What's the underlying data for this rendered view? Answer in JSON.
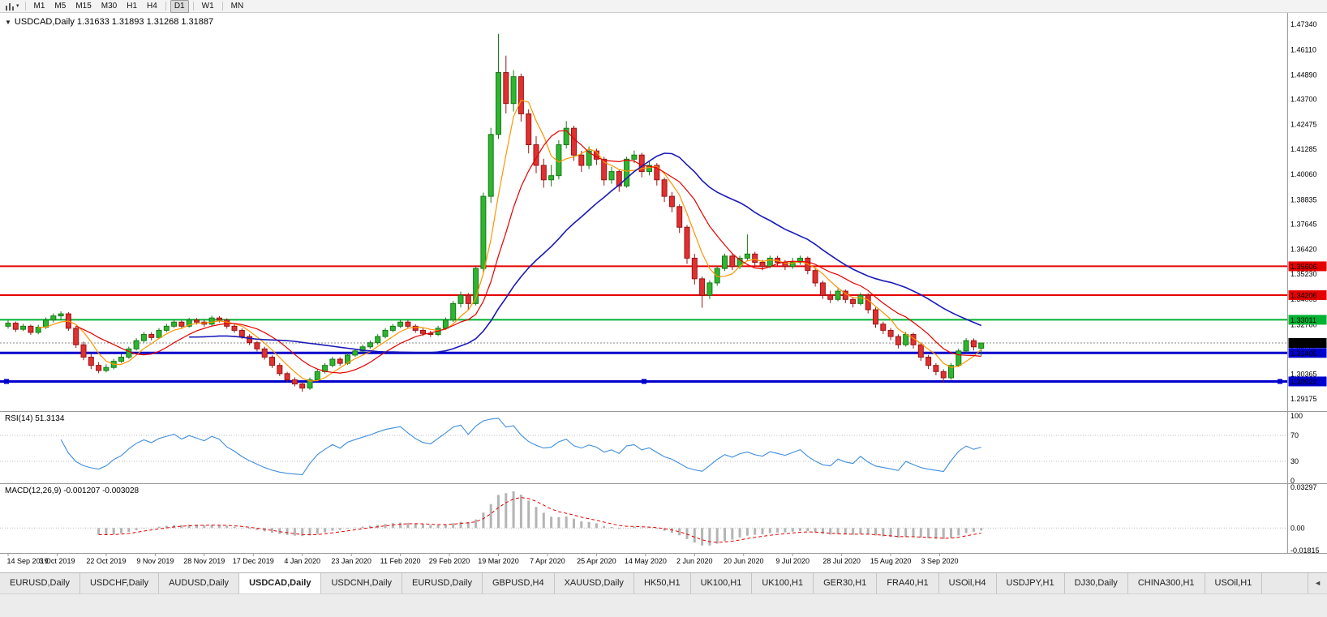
{
  "toolbar": {
    "dropdown_glyph": "▾",
    "timeframes": [
      {
        "label": "M1"
      },
      {
        "label": "M5"
      },
      {
        "label": "M15"
      },
      {
        "label": "M30"
      },
      {
        "label": "H1"
      },
      {
        "label": "H4",
        "sep_after": true
      },
      {
        "label": "D1",
        "active": true,
        "sep_after": true
      },
      {
        "label": "W1",
        "sep_after": true
      },
      {
        "label": "MN"
      }
    ]
  },
  "chart": {
    "marker_glyph": "▼",
    "symbol_line": "USDCAD,Daily 1.31633 1.31893 1.31268 1.31887",
    "ohlc": {
      "open": "1.31633",
      "high": "1.31893",
      "low": "1.31268",
      "close": "1.31887"
    }
  },
  "rsi": {
    "label": "RSI(14) 51.3134",
    "axis": [
      "100",
      "70",
      "30",
      "0"
    ]
  },
  "macd": {
    "label": "MACD(12,26,9) -0.001207 -0.003028",
    "axis": [
      "0.03297",
      "0.00",
      "-0.01815"
    ]
  },
  "chart_data": {
    "type": "candlestick",
    "symbol": "USDCAD",
    "timeframe": "Daily",
    "price_axis_range": {
      "top": 1.4734,
      "bottom": 1.29175
    },
    "price_axis_labels": [
      "1.47340",
      "1.46110",
      "1.44890",
      "1.43700",
      "1.42475",
      "1.41285",
      "1.40060",
      "1.38835",
      "1.37645",
      "1.36420",
      "1.35230",
      "1.34005",
      "1.32780",
      "1.31555",
      "1.30365",
      "1.29175"
    ],
    "date_labels": [
      "14 Sep 2019",
      "3 Oct 2019",
      "22 Oct 2019",
      "9 Nov 2019",
      "28 Nov 2019",
      "17 Dec 2019",
      "4 Jan 2020",
      "23 Jan 2020",
      "11 Feb 2020",
      "29 Feb 2020",
      "19 Mar 2020",
      "7 Apr 2020",
      "25 Apr 2020",
      "14 May 2020",
      "2 Jun 2020",
      "20 Jun 2020",
      "9 Jul 2020",
      "28 Jul 2020",
      "15 Aug 2020",
      "3 Sep 2020"
    ],
    "up_color": "#2fb52f",
    "up_border": "#177a17",
    "down_color": "#e03030",
    "down_border": "#991414",
    "hlines": [
      {
        "price": 1.35606,
        "label": "1.35606",
        "color": "#e60000",
        "width": 2
      },
      {
        "price": 1.34206,
        "label": "1.34206",
        "color": "#e60000",
        "width": 2
      },
      {
        "price": 1.33011,
        "label": "1.33011",
        "color": "#00b232",
        "width": 2
      },
      {
        "price": 1.31405,
        "label": "1.31405",
        "color": "#0000cc",
        "width": 3
      },
      {
        "price": 1.30022,
        "label": "1.30022",
        "color": "#0000cc",
        "width": 3,
        "selected": true
      }
    ],
    "current_price": {
      "value": 1.31887,
      "label": "1.31887",
      "label_bg": "#000000"
    },
    "moving_averages": [
      {
        "name": "ma-fast-orange-line",
        "calc_period": 5,
        "color": "#ff9500",
        "width": 1.2
      },
      {
        "name": "ma-mid-red-line",
        "calc_period": 10,
        "color": "#e60000",
        "width": 1.2
      },
      {
        "name": "ma-slow-blue-line",
        "calc_period": 25,
        "color": "#1a1ab8",
        "width": 1.6
      }
    ],
    "rsi": {
      "calc_period": 7,
      "color": "#3e8ede",
      "levels": [
        70,
        30
      ],
      "current": "51.3134"
    },
    "macd": {
      "calc_periods": [
        6,
        13,
        5
      ],
      "hist_color": "#b4b4b4",
      "signal_color": "#e60000",
      "main": "-0.001207",
      "signal": "-0.003028"
    },
    "candles": [
      [
        1.327,
        1.3298,
        1.3258,
        1.3285
      ],
      [
        1.3285,
        1.3293,
        1.3242,
        1.3255
      ],
      [
        1.3255,
        1.3282,
        1.3246,
        1.327
      ],
      [
        1.327,
        1.3278,
        1.3228,
        1.324
      ],
      [
        1.324,
        1.3277,
        1.3231,
        1.3265
      ],
      [
        1.3265,
        1.3312,
        1.3257,
        1.33
      ],
      [
        1.33,
        1.3332,
        1.3288,
        1.332
      ],
      [
        1.332,
        1.3342,
        1.33,
        1.333
      ],
      [
        1.333,
        1.3338,
        1.3248,
        1.326
      ],
      [
        1.326,
        1.3272,
        1.3165,
        1.318
      ],
      [
        1.318,
        1.3195,
        1.3105,
        1.312
      ],
      [
        1.312,
        1.3138,
        1.3062,
        1.308
      ],
      [
        1.308,
        1.3096,
        1.3042,
        1.3055
      ],
      [
        1.3055,
        1.3085,
        1.3046,
        1.307
      ],
      [
        1.307,
        1.3112,
        1.3061,
        1.31
      ],
      [
        1.31,
        1.3134,
        1.3092,
        1.312
      ],
      [
        1.312,
        1.3171,
        1.3112,
        1.316
      ],
      [
        1.316,
        1.3212,
        1.3152,
        1.32
      ],
      [
        1.32,
        1.3242,
        1.3191,
        1.323
      ],
      [
        1.323,
        1.3241,
        1.3202,
        1.3215
      ],
      [
        1.3215,
        1.3261,
        1.3208,
        1.325
      ],
      [
        1.325,
        1.3282,
        1.3241,
        1.327
      ],
      [
        1.327,
        1.3301,
        1.3262,
        1.329
      ],
      [
        1.329,
        1.3298,
        1.3258,
        1.327
      ],
      [
        1.327,
        1.3311,
        1.3263,
        1.33
      ],
      [
        1.33,
        1.3309,
        1.3278,
        1.329
      ],
      [
        1.329,
        1.3302,
        1.3268,
        1.328
      ],
      [
        1.328,
        1.3321,
        1.3272,
        1.331
      ],
      [
        1.331,
        1.3319,
        1.3288,
        1.33
      ],
      [
        1.33,
        1.3308,
        1.3258,
        1.327
      ],
      [
        1.327,
        1.3281,
        1.3238,
        1.325
      ],
      [
        1.325,
        1.3259,
        1.3208,
        1.322
      ],
      [
        1.322,
        1.3231,
        1.3178,
        1.319
      ],
      [
        1.319,
        1.3199,
        1.3148,
        1.316
      ],
      [
        1.316,
        1.3171,
        1.3108,
        1.312
      ],
      [
        1.312,
        1.3129,
        1.3068,
        1.308
      ],
      [
        1.308,
        1.3091,
        1.3028,
        1.304
      ],
      [
        1.304,
        1.3049,
        1.2998,
        1.301
      ],
      [
        1.301,
        1.3022,
        1.2978,
        1.299
      ],
      [
        1.299,
        1.2999,
        1.2952,
        1.297
      ],
      [
        1.297,
        1.3021,
        1.2961,
        1.301
      ],
      [
        1.301,
        1.3062,
        1.3002,
        1.305
      ],
      [
        1.305,
        1.3091,
        1.3041,
        1.308
      ],
      [
        1.308,
        1.3122,
        1.3071,
        1.311
      ],
      [
        1.311,
        1.3119,
        1.3078,
        1.309
      ],
      [
        1.309,
        1.3141,
        1.3082,
        1.313
      ],
      [
        1.313,
        1.3161,
        1.3121,
        1.315
      ],
      [
        1.315,
        1.3181,
        1.3141,
        1.317
      ],
      [
        1.317,
        1.3201,
        1.3161,
        1.319
      ],
      [
        1.319,
        1.3231,
        1.3181,
        1.322
      ],
      [
        1.322,
        1.3261,
        1.3211,
        1.325
      ],
      [
        1.325,
        1.3281,
        1.3241,
        1.327
      ],
      [
        1.327,
        1.3301,
        1.3261,
        1.329
      ],
      [
        1.329,
        1.3299,
        1.3258,
        1.327
      ],
      [
        1.327,
        1.3279,
        1.3238,
        1.325
      ],
      [
        1.325,
        1.3261,
        1.3222,
        1.3235
      ],
      [
        1.3235,
        1.3248,
        1.3218,
        1.323
      ],
      [
        1.323,
        1.3272,
        1.3222,
        1.326
      ],
      [
        1.326,
        1.3312,
        1.3252,
        1.33
      ],
      [
        1.33,
        1.3392,
        1.3291,
        1.338
      ],
      [
        1.338,
        1.3438,
        1.3361,
        1.342
      ],
      [
        1.342,
        1.3431,
        1.3348,
        1.338
      ],
      [
        1.338,
        1.3562,
        1.3371,
        1.355
      ],
      [
        1.355,
        1.3918,
        1.3532,
        1.39
      ],
      [
        1.39,
        1.4232,
        1.3868,
        1.42
      ],
      [
        1.42,
        1.4688,
        1.4178,
        1.45
      ],
      [
        1.45,
        1.4582,
        1.4302,
        1.435
      ],
      [
        1.435,
        1.4512,
        1.4311,
        1.448
      ],
      [
        1.448,
        1.4495,
        1.4262,
        1.43
      ],
      [
        1.43,
        1.4322,
        1.4108,
        1.415
      ],
      [
        1.415,
        1.4192,
        1.4012,
        1.405
      ],
      [
        1.405,
        1.4082,
        1.3942,
        1.398
      ],
      [
        1.398,
        1.4052,
        1.3948,
        1.4
      ],
      [
        1.4,
        1.4172,
        1.3982,
        1.415
      ],
      [
        1.415,
        1.4265,
        1.4132,
        1.423
      ],
      [
        1.423,
        1.4242,
        1.4072,
        1.41
      ],
      [
        1.41,
        1.4121,
        1.4018,
        1.405
      ],
      [
        1.405,
        1.4142,
        1.4032,
        1.412
      ],
      [
        1.412,
        1.4131,
        1.4052,
        1.408
      ],
      [
        1.408,
        1.4092,
        1.3952,
        1.398
      ],
      [
        1.398,
        1.4042,
        1.3961,
        1.402
      ],
      [
        1.402,
        1.4031,
        1.3922,
        1.395
      ],
      [
        1.395,
        1.4092,
        1.3941,
        1.408
      ],
      [
        1.408,
        1.4122,
        1.4061,
        1.41
      ],
      [
        1.41,
        1.4111,
        1.3992,
        1.402
      ],
      [
        1.402,
        1.4072,
        1.4001,
        1.405
      ],
      [
        1.405,
        1.4061,
        1.3952,
        1.398
      ],
      [
        1.398,
        1.3991,
        1.3872,
        1.39
      ],
      [
        1.39,
        1.3921,
        1.3822,
        1.385
      ],
      [
        1.385,
        1.3861,
        1.3722,
        1.375
      ],
      [
        1.375,
        1.3761,
        1.3572,
        1.36
      ],
      [
        1.36,
        1.3621,
        1.3472,
        1.35
      ],
      [
        1.35,
        1.3511,
        1.336,
        1.342
      ],
      [
        1.342,
        1.3492,
        1.3402,
        1.348
      ],
      [
        1.348,
        1.3562,
        1.3466,
        1.355
      ],
      [
        1.355,
        1.3622,
        1.3538,
        1.361
      ],
      [
        1.361,
        1.3621,
        1.3542,
        1.356
      ],
      [
        1.356,
        1.3612,
        1.3548,
        1.36
      ],
      [
        1.36,
        1.3715,
        1.3588,
        1.362
      ],
      [
        1.362,
        1.3631,
        1.3562,
        1.358
      ],
      [
        1.358,
        1.3592,
        1.3541,
        1.356
      ],
      [
        1.356,
        1.3612,
        1.3551,
        1.36
      ],
      [
        1.36,
        1.3611,
        1.3562,
        1.358
      ],
      [
        1.358,
        1.3591,
        1.3542,
        1.356
      ],
      [
        1.356,
        1.3602,
        1.3548,
        1.358
      ],
      [
        1.358,
        1.3612,
        1.3568,
        1.36
      ],
      [
        1.36,
        1.3608,
        1.3522,
        1.354
      ],
      [
        1.354,
        1.3551,
        1.3462,
        1.348
      ],
      [
        1.348,
        1.3491,
        1.3402,
        1.342
      ],
      [
        1.342,
        1.3442,
        1.3382,
        1.34
      ],
      [
        1.34,
        1.3452,
        1.3391,
        1.344
      ],
      [
        1.344,
        1.3448,
        1.3382,
        1.34
      ],
      [
        1.34,
        1.3412,
        1.3361,
        1.338
      ],
      [
        1.338,
        1.3432,
        1.3371,
        1.342
      ],
      [
        1.342,
        1.3429,
        1.3332,
        1.335
      ],
      [
        1.335,
        1.3361,
        1.3262,
        1.328
      ],
      [
        1.328,
        1.3292,
        1.3232,
        1.325
      ],
      [
        1.325,
        1.3261,
        1.3202,
        1.322
      ],
      [
        1.322,
        1.3231,
        1.3162,
        1.318
      ],
      [
        1.318,
        1.3242,
        1.3171,
        1.323
      ],
      [
        1.323,
        1.3239,
        1.3162,
        1.318
      ],
      [
        1.318,
        1.3191,
        1.3102,
        1.312
      ],
      [
        1.312,
        1.3131,
        1.3062,
        1.308
      ],
      [
        1.308,
        1.3091,
        1.3032,
        1.305
      ],
      [
        1.305,
        1.3061,
        1.2995,
        1.302
      ],
      [
        1.302,
        1.3092,
        1.3011,
        1.308
      ],
      [
        1.308,
        1.3162,
        1.3071,
        1.315
      ],
      [
        1.315,
        1.3212,
        1.3141,
        1.32
      ],
      [
        1.32,
        1.3211,
        1.3152,
        1.317
      ],
      [
        1.31633,
        1.31893,
        1.31268,
        1.31887
      ]
    ]
  },
  "tabs": {
    "scroll_glyph": "◄",
    "items": [
      {
        "label": "EURUSD,Daily"
      },
      {
        "label": "USDCHF,Daily"
      },
      {
        "label": "AUDUSD,Daily"
      },
      {
        "label": "USDCAD,Daily",
        "active": true
      },
      {
        "label": "USDCNH,Daily"
      },
      {
        "label": "EURUSD,Daily"
      },
      {
        "label": "GBPUSD,H4"
      },
      {
        "label": "XAUUSD,Daily"
      },
      {
        "label": "HK50,H1"
      },
      {
        "label": "UK100,H1"
      },
      {
        "label": "UK100,H1"
      },
      {
        "label": "GER30,H1"
      },
      {
        "label": "FRA40,H1"
      },
      {
        "label": "USOil,H4"
      },
      {
        "label": "USDJPY,H1"
      },
      {
        "label": "DJ30,Daily"
      },
      {
        "label": "CHINA300,H1"
      },
      {
        "label": "USOil,H1"
      }
    ]
  }
}
